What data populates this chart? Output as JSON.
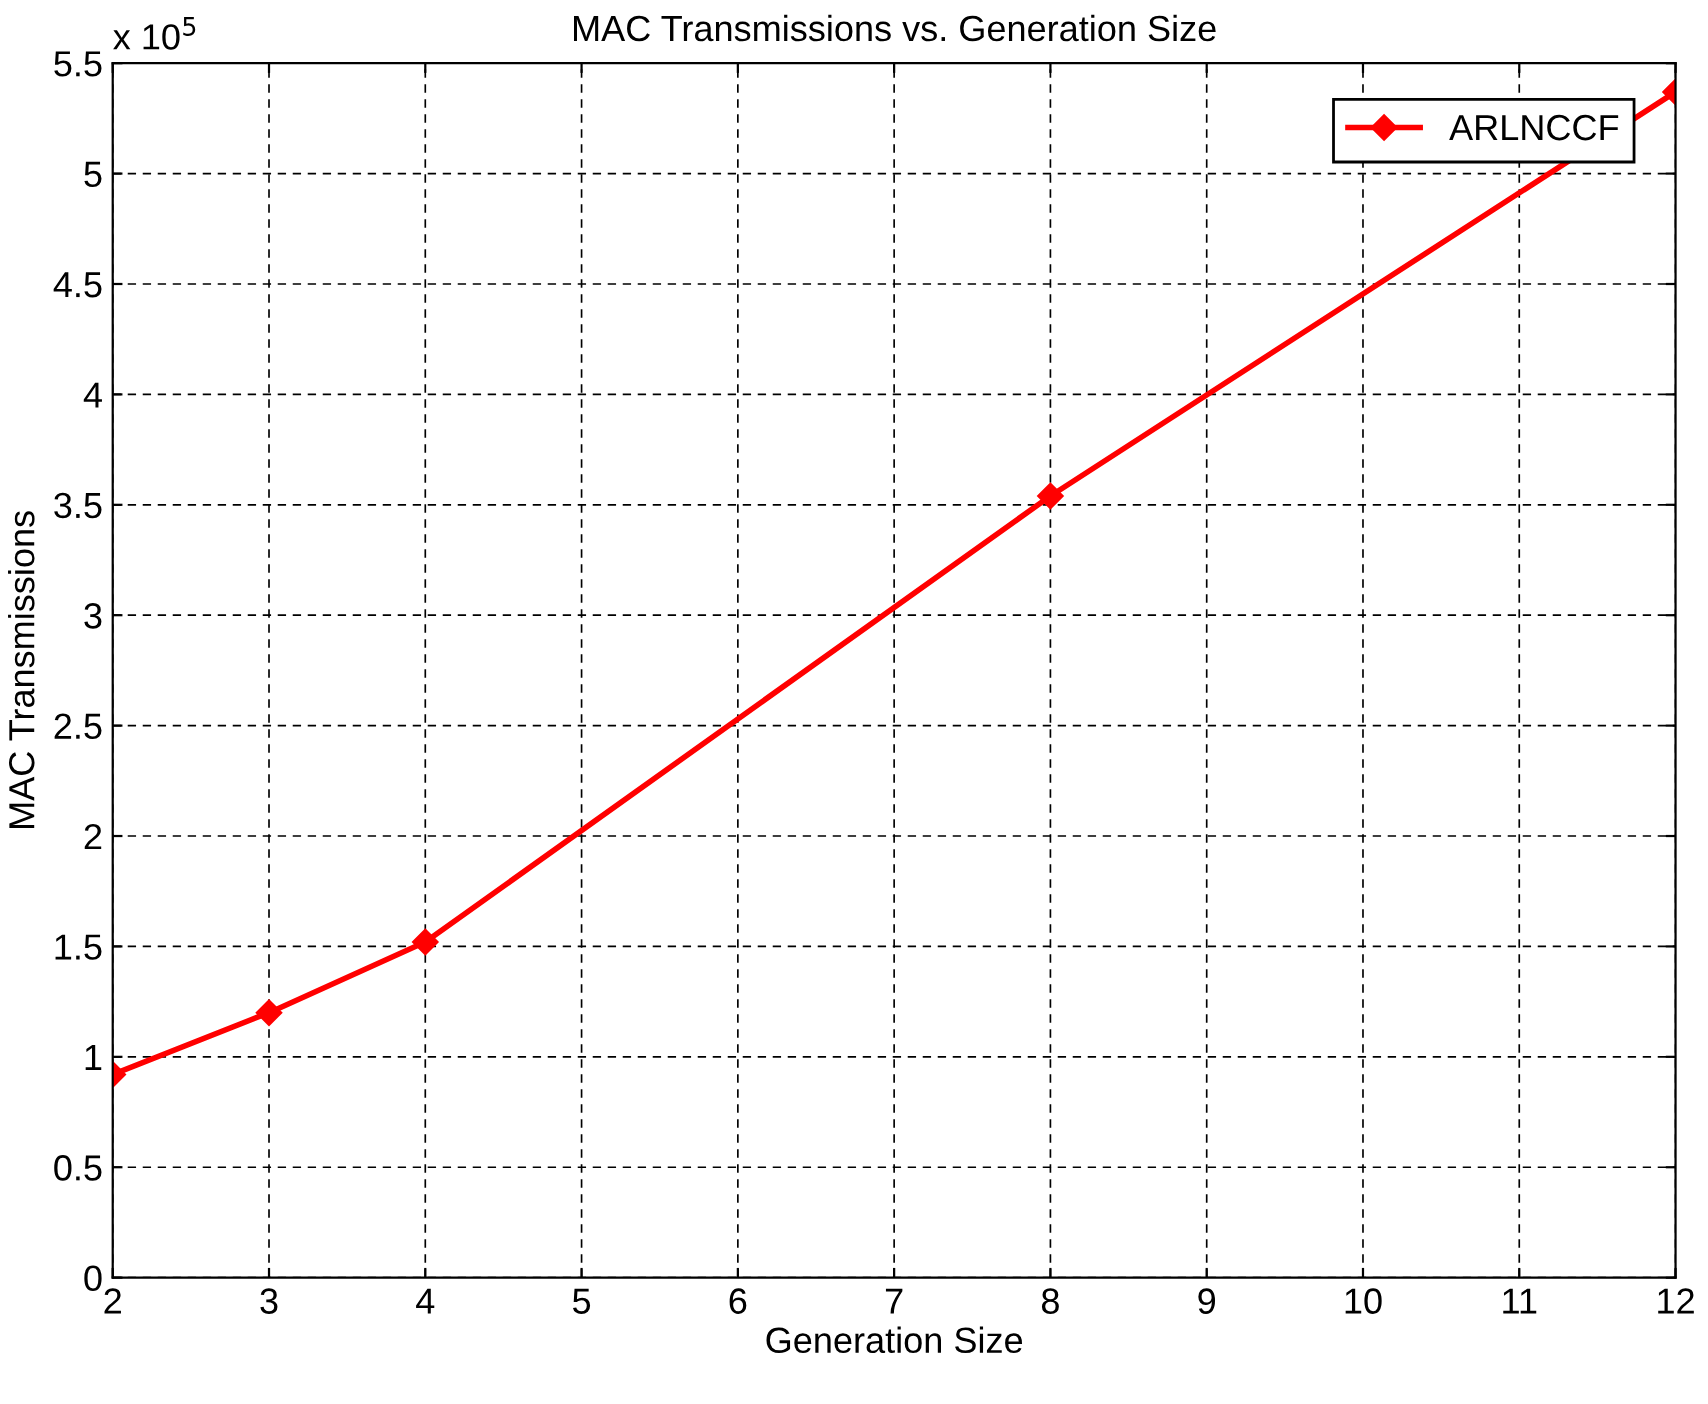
{
  "chart_data": {
    "type": "line",
    "title": "MAC Transmissions vs. Generation Size",
    "xlabel": "Generation Size",
    "ylabel": "MAC Transmissions",
    "x": [
      2,
      3,
      4,
      8,
      12
    ],
    "series": [
      {
        "name": "ARLNCCF",
        "color": "#ff0000",
        "values": [
          0.92,
          1.2,
          1.52,
          3.54,
          5.37
        ]
      }
    ],
    "xlim": [
      2,
      12
    ],
    "xticks": [
      2,
      3,
      4,
      5,
      6,
      7,
      8,
      9,
      10,
      11,
      12
    ],
    "ylim": [
      0,
      5.5
    ],
    "yticks": [
      0,
      0.5,
      1,
      1.5,
      2,
      2.5,
      3,
      3.5,
      4,
      4.5,
      5,
      5.5
    ],
    "annotations": [
      "x 10$^{5}$"
    ],
    "grid": true,
    "legend": "top right",
    "marker": "diamond",
    "line_style": "solid"
  }
}
